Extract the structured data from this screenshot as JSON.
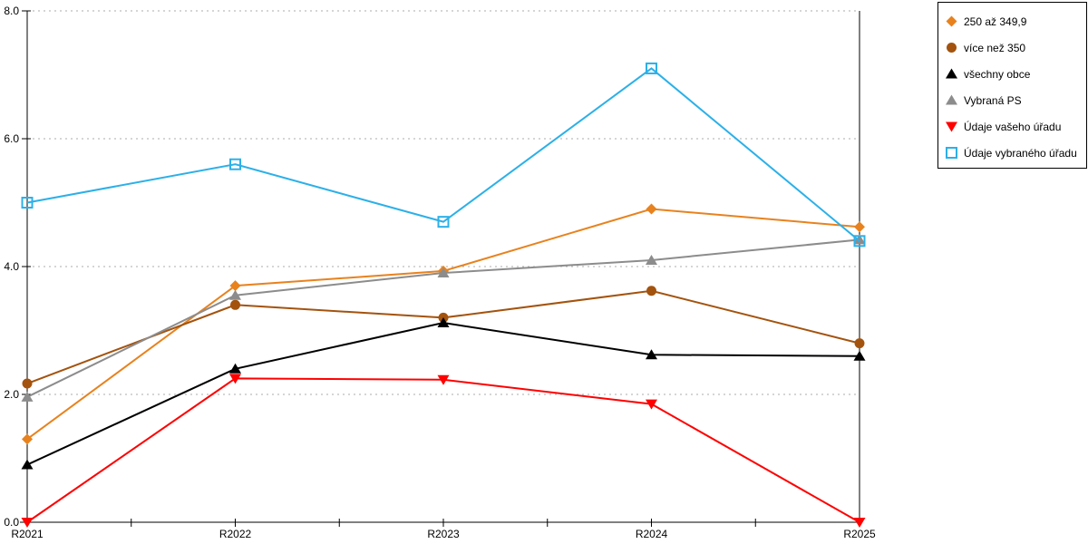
{
  "chart_data": {
    "type": "line",
    "title": "",
    "x_categories": [
      "R2021",
      "R2022",
      "R2023",
      "R2024",
      "R2025"
    ],
    "y_tick_labels": [
      "0.0",
      "2.0",
      "4.0",
      "6.0",
      "8.0"
    ],
    "ylim": [
      0,
      8
    ],
    "grid": {
      "axis": "y",
      "values": [
        2,
        4,
        6,
        8
      ],
      "style": "dotted",
      "color": "#ABABAB"
    },
    "legend_position": "outside-top-right",
    "axis_color": "#000000",
    "series": [
      {
        "name": "250 až 349,9",
        "marker": "diamond",
        "color": "#E8821E",
        "values": [
          1.3,
          3.7,
          3.93,
          4.9,
          4.62
        ]
      },
      {
        "name": "více než 350",
        "marker": "circle",
        "color": "#A3530E",
        "values": [
          2.17,
          3.4,
          3.2,
          3.62,
          2.8
        ]
      },
      {
        "name": "všechny obce",
        "marker": "triangle-up",
        "color": "#000000",
        "values": [
          0.9,
          2.4,
          3.12,
          2.62,
          2.6
        ]
      },
      {
        "name": "Vybraná PS",
        "marker": "triangle-up",
        "color": "#8C8C8C",
        "values": [
          1.96,
          3.55,
          3.9,
          4.1,
          4.42
        ]
      },
      {
        "name": "Údaje vašeho úřadu",
        "marker": "triangle-down",
        "color": "#FF0000",
        "values": [
          0.0,
          2.25,
          2.23,
          1.85,
          0.0
        ]
      },
      {
        "name": "Údaje vybraného úřadu",
        "marker": "square-open",
        "color": "#2CB0E8",
        "values": [
          5.0,
          5.6,
          4.7,
          7.1,
          4.4
        ]
      }
    ]
  }
}
